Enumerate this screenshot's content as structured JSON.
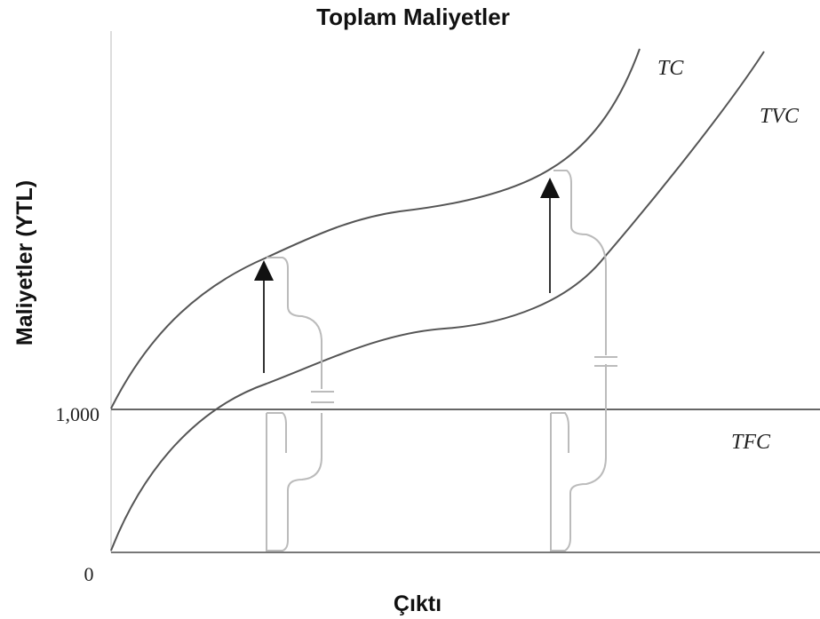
{
  "title": "Toplam Maliyetler",
  "y_axis_label": "Maliyetler (YTL)",
  "x_axis_label": "Çıktı",
  "y_ticks": [
    "1,000",
    "0"
  ],
  "curve_labels": {
    "tc": "TC",
    "tvc": "TVC",
    "tfc": "TFC"
  }
}
